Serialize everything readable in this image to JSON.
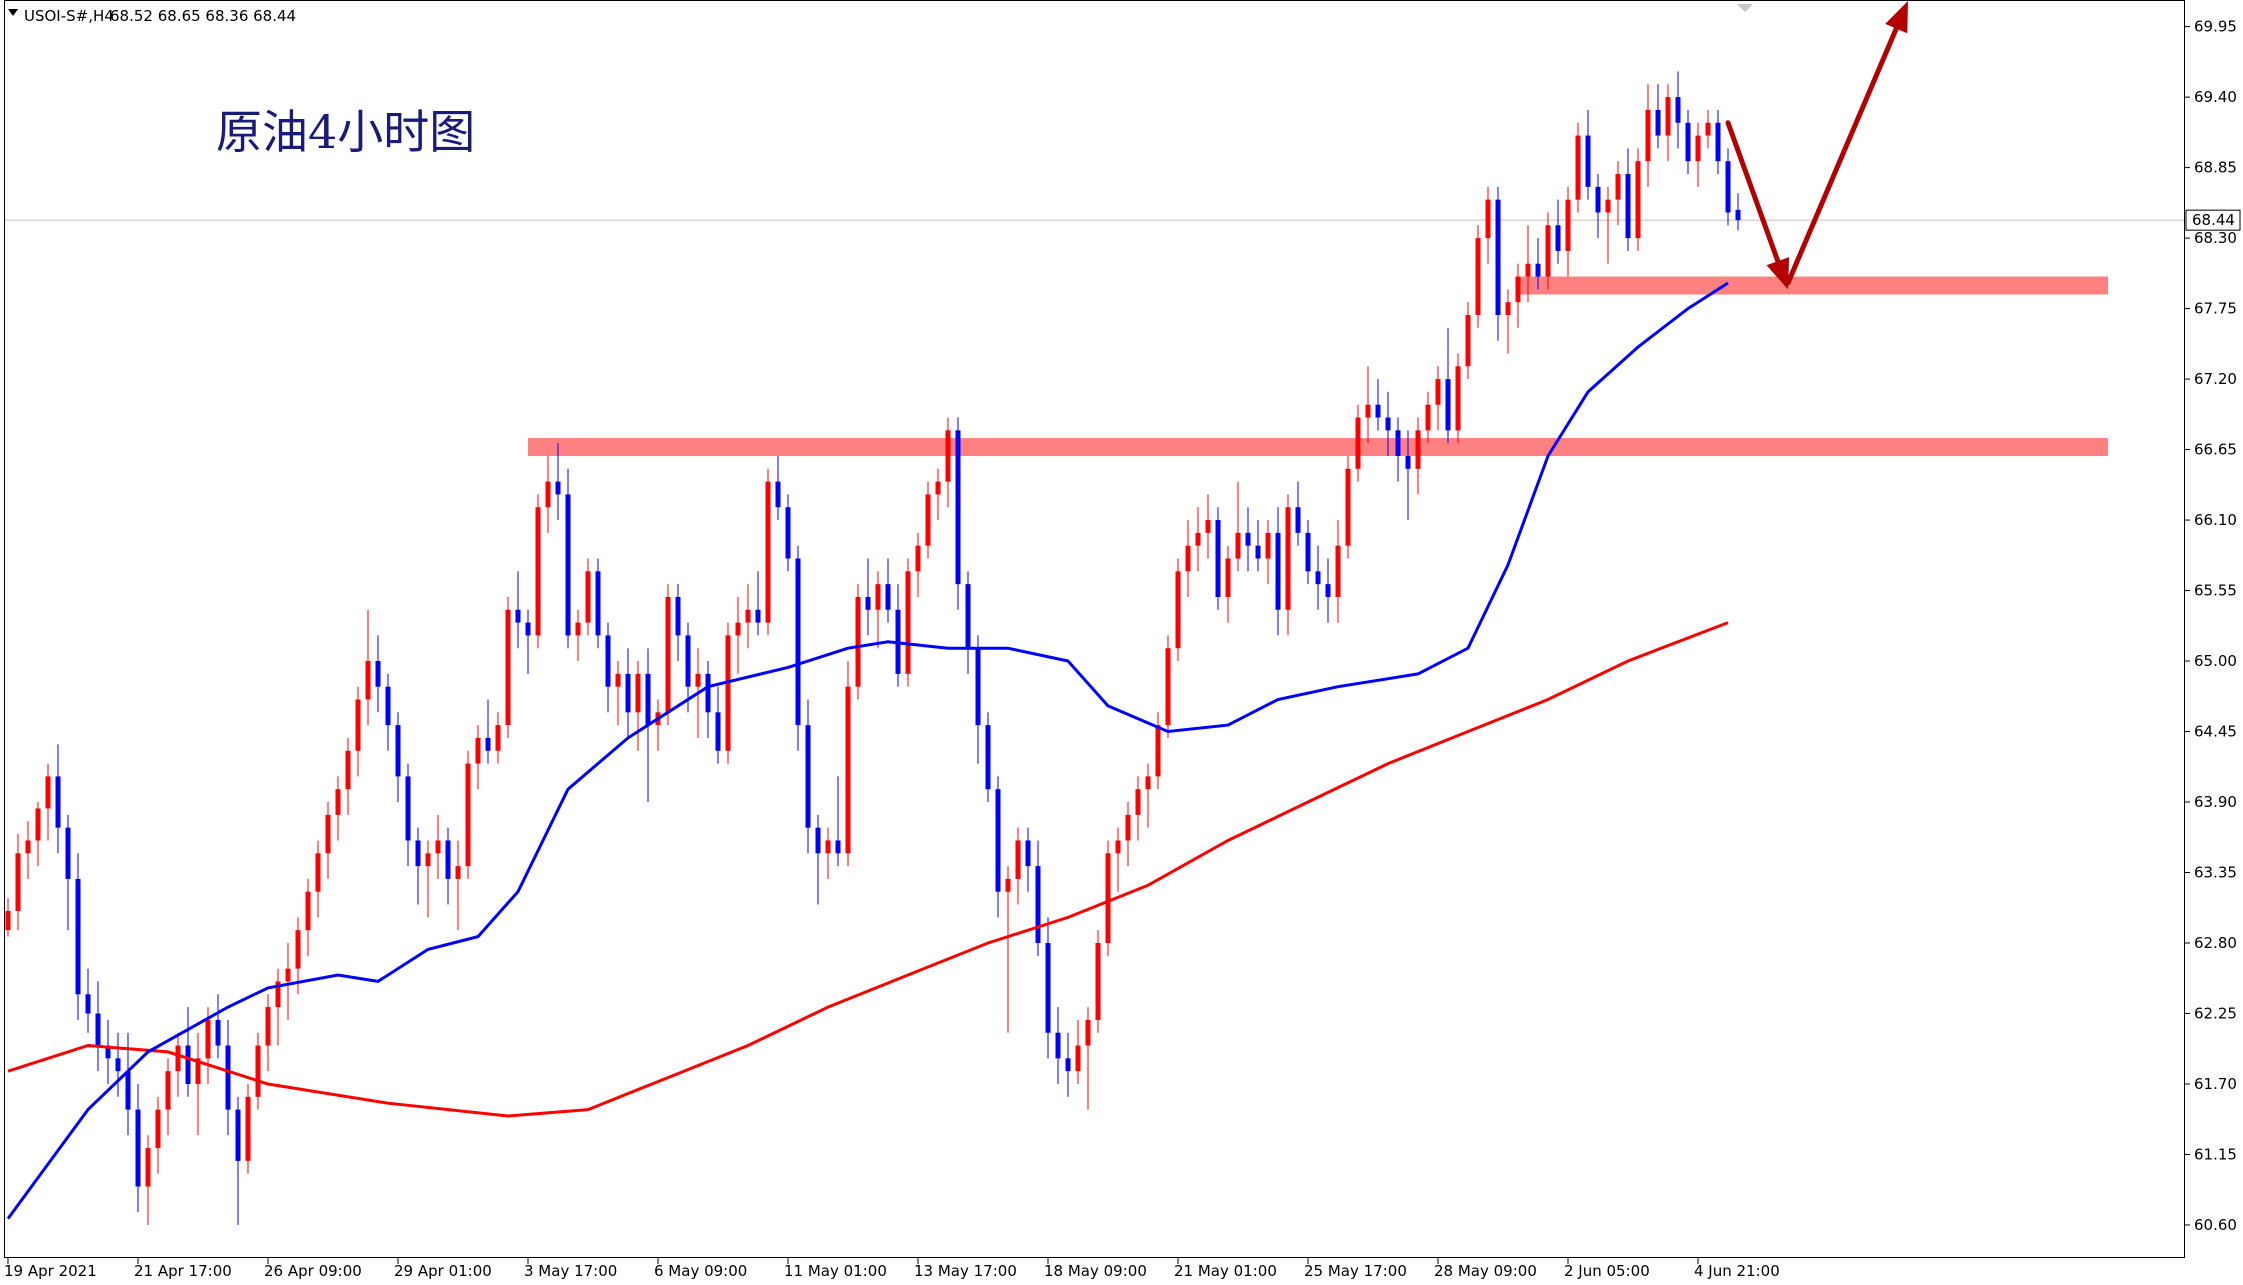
{
  "header": {
    "symbol": "USOI-S#,H4",
    "ohlc": "68.52 68.65 68.36 68.44"
  },
  "annotation": {
    "text": "原油4小时图"
  },
  "price_axis": {
    "labels": [
      "69.95",
      "69.40",
      "68.85",
      "68.30",
      "67.75",
      "67.20",
      "66.65",
      "66.10",
      "65.55",
      "65.00",
      "64.45",
      "63.90",
      "63.35",
      "62.80",
      "62.25",
      "61.70",
      "61.15",
      "60.60"
    ],
    "current_price_label": "68.44"
  },
  "time_axis": {
    "labels": [
      "19 Apr 2021",
      "21 Apr 17:00",
      "26 Apr 09:00",
      "29 Apr 01:00",
      "3 May 17:00",
      "6 May 09:00",
      "11 May 01:00",
      "13 May 17:00",
      "18 May 09:00",
      "21 May 01:00",
      "25 May 17:00",
      "28 May 09:00",
      "2 Jun 05:00",
      "4 Jun 21:00"
    ]
  },
  "colors": {
    "bull": "#ff0000",
    "bear": "#0000ff",
    "ma_fast": "#0000ff",
    "ma_slow": "#ff0000",
    "zone": "#ff8080",
    "arrow": "#b30000",
    "axis": "#000000"
  },
  "chart_data": {
    "type": "candlestick",
    "symbol": "USOI-S#",
    "timeframe": "H4",
    "ylim": [
      60.35,
      70.15
    ],
    "grid": false,
    "candles_ohlc": [
      [
        62.9,
        63.15,
        62.85,
        63.05
      ],
      [
        63.05,
        63.65,
        62.9,
        63.5
      ],
      [
        63.5,
        63.75,
        63.3,
        63.6
      ],
      [
        63.6,
        63.9,
        63.4,
        63.85
      ],
      [
        63.85,
        64.2,
        63.6,
        64.1
      ],
      [
        64.1,
        64.35,
        63.5,
        63.7
      ],
      [
        63.7,
        63.8,
        62.9,
        63.3
      ],
      [
        63.3,
        63.5,
        62.2,
        62.4
      ],
      [
        62.4,
        62.6,
        62.1,
        62.25
      ],
      [
        62.25,
        62.5,
        61.8,
        62.0
      ],
      [
        62.0,
        62.2,
        61.7,
        61.9
      ],
      [
        61.9,
        62.1,
        61.6,
        61.8
      ],
      [
        61.8,
        62.1,
        61.3,
        61.5
      ],
      [
        61.5,
        61.7,
        60.7,
        60.9
      ],
      [
        60.9,
        61.3,
        60.6,
        61.2
      ],
      [
        61.2,
        61.6,
        61.0,
        61.5
      ],
      [
        61.5,
        61.9,
        61.3,
        61.8
      ],
      [
        61.8,
        62.1,
        61.6,
        62.0
      ],
      [
        62.0,
        62.3,
        61.6,
        61.7
      ],
      [
        61.7,
        62.1,
        61.3,
        61.9
      ],
      [
        61.9,
        62.3,
        61.7,
        62.2
      ],
      [
        62.2,
        62.4,
        61.9,
        62.0
      ],
      [
        62.0,
        62.2,
        61.3,
        61.5
      ],
      [
        61.5,
        61.6,
        60.6,
        61.1
      ],
      [
        61.1,
        61.7,
        61.0,
        61.6
      ],
      [
        61.6,
        62.1,
        61.5,
        62.0
      ],
      [
        62.0,
        62.4,
        61.8,
        62.3
      ],
      [
        62.3,
        62.6,
        62.0,
        62.5
      ],
      [
        62.5,
        62.8,
        62.2,
        62.6
      ],
      [
        62.6,
        63.0,
        62.4,
        62.9
      ],
      [
        62.9,
        63.3,
        62.7,
        63.2
      ],
      [
        63.2,
        63.6,
        63.0,
        63.5
      ],
      [
        63.5,
        63.9,
        63.3,
        63.8
      ],
      [
        63.8,
        64.1,
        63.6,
        64.0
      ],
      [
        64.0,
        64.4,
        63.8,
        64.3
      ],
      [
        64.3,
        64.8,
        64.1,
        64.7
      ],
      [
        64.7,
        65.4,
        64.5,
        65.0
      ],
      [
        65.0,
        65.2,
        64.6,
        64.8
      ],
      [
        64.8,
        64.9,
        64.3,
        64.5
      ],
      [
        64.5,
        64.6,
        63.9,
        64.1
      ],
      [
        64.1,
        64.2,
        63.4,
        63.6
      ],
      [
        63.6,
        63.7,
        63.1,
        63.4
      ],
      [
        63.4,
        63.6,
        63.0,
        63.5
      ],
      [
        63.5,
        63.8,
        63.3,
        63.6
      ],
      [
        63.6,
        63.7,
        63.1,
        63.3
      ],
      [
        63.3,
        63.6,
        62.9,
        63.4
      ],
      [
        63.4,
        64.3,
        63.3,
        64.2
      ],
      [
        64.2,
        64.5,
        64.0,
        64.4
      ],
      [
        64.4,
        64.7,
        64.2,
        64.3
      ],
      [
        64.3,
        64.6,
        64.2,
        64.5
      ],
      [
        64.5,
        65.5,
        64.4,
        65.4
      ],
      [
        65.4,
        65.7,
        65.1,
        65.3
      ],
      [
        65.3,
        65.4,
        64.9,
        65.2
      ],
      [
        65.2,
        66.3,
        65.1,
        66.2
      ],
      [
        66.2,
        66.6,
        66.0,
        66.4
      ],
      [
        66.4,
        66.7,
        66.1,
        66.3
      ],
      [
        66.3,
        66.5,
        65.1,
        65.2
      ],
      [
        65.2,
        65.4,
        65.0,
        65.3
      ],
      [
        65.3,
        65.8,
        65.2,
        65.7
      ],
      [
        65.7,
        65.8,
        65.1,
        65.2
      ],
      [
        65.2,
        65.3,
        64.6,
        64.8
      ],
      [
        64.8,
        65.0,
        64.5,
        64.9
      ],
      [
        64.9,
        65.1,
        64.4,
        64.6
      ],
      [
        64.6,
        65.0,
        64.3,
        64.9
      ],
      [
        64.9,
        65.1,
        63.9,
        64.5
      ],
      [
        64.5,
        64.7,
        64.3,
        64.6
      ],
      [
        64.6,
        65.6,
        64.5,
        65.5
      ],
      [
        65.5,
        65.6,
        65.0,
        65.2
      ],
      [
        65.2,
        65.3,
        64.6,
        64.8
      ],
      [
        64.8,
        65.1,
        64.4,
        64.9
      ],
      [
        64.9,
        65.0,
        64.4,
        64.6
      ],
      [
        64.6,
        64.8,
        64.2,
        64.3
      ],
      [
        64.3,
        65.3,
        64.2,
        65.2
      ],
      [
        65.2,
        65.5,
        64.9,
        65.3
      ],
      [
        65.3,
        65.6,
        65.1,
        65.4
      ],
      [
        65.4,
        65.7,
        65.2,
        65.3
      ],
      [
        65.3,
        66.5,
        65.2,
        66.4
      ],
      [
        66.4,
        66.6,
        66.1,
        66.2
      ],
      [
        66.2,
        66.3,
        65.7,
        65.8
      ],
      [
        65.8,
        65.9,
        64.3,
        64.5
      ],
      [
        64.5,
        64.7,
        63.5,
        63.7
      ],
      [
        63.7,
        63.8,
        63.1,
        63.5
      ],
      [
        63.5,
        63.7,
        63.3,
        63.6
      ],
      [
        63.6,
        64.1,
        63.4,
        63.5
      ],
      [
        63.5,
        65.0,
        63.4,
        64.8
      ],
      [
        64.8,
        65.6,
        64.7,
        65.5
      ],
      [
        65.5,
        65.8,
        65.2,
        65.4
      ],
      [
        65.4,
        65.7,
        65.1,
        65.6
      ],
      [
        65.6,
        65.8,
        65.3,
        65.4
      ],
      [
        65.4,
        65.6,
        64.8,
        64.9
      ],
      [
        64.9,
        65.8,
        64.8,
        65.7
      ],
      [
        65.7,
        66.0,
        65.5,
        65.9
      ],
      [
        65.9,
        66.4,
        65.8,
        66.3
      ],
      [
        66.3,
        66.5,
        66.1,
        66.4
      ],
      [
        66.4,
        66.9,
        66.2,
        66.8
      ],
      [
        66.8,
        66.9,
        65.4,
        65.6
      ],
      [
        65.6,
        65.7,
        64.9,
        65.1
      ],
      [
        65.1,
        65.2,
        64.2,
        64.5
      ],
      [
        64.5,
        64.6,
        63.9,
        64.0
      ],
      [
        64.0,
        64.1,
        63.0,
        63.2
      ],
      [
        63.2,
        63.4,
        62.1,
        63.3
      ],
      [
        63.3,
        63.7,
        63.1,
        63.6
      ],
      [
        63.6,
        63.7,
        63.2,
        63.4
      ],
      [
        63.4,
        63.6,
        62.7,
        62.8
      ],
      [
        62.8,
        63.0,
        61.9,
        62.1
      ],
      [
        62.1,
        62.3,
        61.7,
        61.9
      ],
      [
        61.9,
        62.1,
        61.6,
        61.8
      ],
      [
        61.8,
        62.2,
        61.7,
        62.0
      ],
      [
        62.0,
        62.3,
        61.5,
        62.2
      ],
      [
        62.2,
        62.9,
        62.1,
        62.8
      ],
      [
        62.8,
        63.6,
        62.7,
        63.5
      ],
      [
        63.5,
        63.7,
        63.2,
        63.6
      ],
      [
        63.6,
        63.9,
        63.4,
        63.8
      ],
      [
        63.8,
        64.1,
        63.6,
        64.0
      ],
      [
        64.0,
        64.2,
        63.7,
        64.1
      ],
      [
        64.1,
        64.6,
        64.0,
        64.5
      ],
      [
        64.5,
        65.2,
        64.4,
        65.1
      ],
      [
        65.1,
        65.8,
        65.0,
        65.7
      ],
      [
        65.7,
        66.1,
        65.5,
        65.9
      ],
      [
        65.9,
        66.2,
        65.7,
        66.0
      ],
      [
        66.0,
        66.3,
        65.8,
        66.1
      ],
      [
        66.1,
        66.2,
        65.4,
        65.5
      ],
      [
        65.5,
        65.9,
        65.3,
        65.8
      ],
      [
        65.8,
        66.4,
        65.7,
        66.0
      ],
      [
        66.0,
        66.2,
        65.7,
        65.9
      ],
      [
        65.9,
        66.1,
        65.7,
        65.8
      ],
      [
        65.8,
        66.1,
        65.6,
        66.0
      ],
      [
        66.0,
        66.2,
        65.2,
        65.4
      ],
      [
        65.4,
        66.3,
        65.2,
        66.2
      ],
      [
        66.2,
        66.4,
        65.9,
        66.0
      ],
      [
        66.0,
        66.1,
        65.6,
        65.7
      ],
      [
        65.7,
        65.9,
        65.4,
        65.6
      ],
      [
        65.6,
        65.8,
        65.3,
        65.5
      ],
      [
        65.5,
        66.1,
        65.3,
        65.9
      ],
      [
        65.9,
        66.6,
        65.8,
        66.5
      ],
      [
        66.5,
        67.0,
        66.4,
        66.9
      ],
      [
        66.9,
        67.3,
        66.7,
        67.0
      ],
      [
        67.0,
        67.2,
        66.8,
        66.9
      ],
      [
        66.9,
        67.1,
        66.6,
        66.8
      ],
      [
        66.8,
        66.9,
        66.4,
        66.6
      ],
      [
        66.6,
        66.8,
        66.1,
        66.5
      ],
      [
        66.5,
        66.9,
        66.3,
        66.8
      ],
      [
        66.8,
        67.1,
        66.7,
        67.0
      ],
      [
        67.0,
        67.3,
        66.8,
        67.2
      ],
      [
        67.2,
        67.6,
        66.7,
        66.8
      ],
      [
        66.8,
        67.4,
        66.7,
        67.3
      ],
      [
        67.3,
        67.8,
        67.2,
        67.7
      ],
      [
        67.7,
        68.4,
        67.6,
        68.3
      ],
      [
        68.3,
        68.7,
        68.1,
        68.6
      ],
      [
        68.6,
        68.7,
        67.5,
        67.7
      ],
      [
        67.7,
        67.9,
        67.4,
        67.8
      ],
      [
        67.8,
        68.1,
        67.6,
        68.0
      ],
      [
        68.0,
        68.4,
        67.8,
        68.1
      ],
      [
        68.1,
        68.3,
        67.9,
        68.0
      ],
      [
        68.0,
        68.5,
        67.9,
        68.4
      ],
      [
        68.4,
        68.6,
        68.1,
        68.2
      ],
      [
        68.2,
        68.7,
        68.0,
        68.6
      ],
      [
        68.6,
        69.2,
        68.5,
        69.1
      ],
      [
        69.1,
        69.3,
        68.6,
        68.7
      ],
      [
        68.7,
        68.8,
        68.3,
        68.5
      ],
      [
        68.5,
        68.7,
        68.1,
        68.6
      ],
      [
        68.6,
        68.9,
        68.4,
        68.8
      ],
      [
        68.8,
        69.0,
        68.2,
        68.3
      ],
      [
        68.3,
        69.0,
        68.2,
        68.9
      ],
      [
        68.9,
        69.5,
        68.7,
        69.3
      ],
      [
        69.3,
        69.5,
        69.0,
        69.1
      ],
      [
        69.1,
        69.5,
        68.9,
        69.4
      ],
      [
        69.4,
        69.6,
        69.0,
        69.2
      ],
      [
        69.2,
        69.3,
        68.8,
        68.9
      ],
      [
        68.9,
        69.2,
        68.7,
        69.1
      ],
      [
        69.1,
        69.3,
        69.0,
        69.2
      ],
      [
        69.2,
        69.3,
        68.8,
        68.9
      ],
      [
        68.9,
        69.0,
        68.4,
        68.5
      ],
      [
        68.52,
        68.65,
        68.36,
        68.44
      ]
    ],
    "ma_fast": [
      [
        0,
        60.65
      ],
      [
        8,
        61.5
      ],
      [
        14,
        61.95
      ],
      [
        22,
        62.3
      ],
      [
        26,
        62.45
      ],
      [
        33,
        62.55
      ],
      [
        37,
        62.5
      ],
      [
        42,
        62.75
      ],
      [
        47,
        62.85
      ],
      [
        51,
        63.2
      ],
      [
        56,
        64.0
      ],
      [
        62,
        64.4
      ],
      [
        70,
        64.8
      ],
      [
        78,
        64.95
      ],
      [
        84,
        65.1
      ],
      [
        88,
        65.15
      ],
      [
        94,
        65.1
      ],
      [
        100,
        65.1
      ],
      [
        106,
        65.0
      ],
      [
        110,
        64.65
      ],
      [
        116,
        64.45
      ],
      [
        122,
        64.5
      ],
      [
        127,
        64.7
      ],
      [
        133,
        64.8
      ],
      [
        141,
        64.9
      ],
      [
        146,
        65.1
      ],
      [
        150,
        65.75
      ],
      [
        154,
        66.6
      ],
      [
        158,
        67.1
      ],
      [
        163,
        67.45
      ],
      [
        168,
        67.75
      ],
      [
        172,
        67.95
      ]
    ],
    "ma_slow": [
      [
        0,
        61.8
      ],
      [
        8,
        62.0
      ],
      [
        16,
        61.95
      ],
      [
        26,
        61.7
      ],
      [
        38,
        61.55
      ],
      [
        50,
        61.45
      ],
      [
        58,
        61.5
      ],
      [
        66,
        61.75
      ],
      [
        74,
        62.0
      ],
      [
        82,
        62.3
      ],
      [
        90,
        62.55
      ],
      [
        98,
        62.8
      ],
      [
        106,
        63.0
      ],
      [
        114,
        63.25
      ],
      [
        122,
        63.6
      ],
      [
        130,
        63.9
      ],
      [
        138,
        64.2
      ],
      [
        146,
        64.45
      ],
      [
        154,
        64.7
      ],
      [
        162,
        65.0
      ],
      [
        172,
        65.3
      ]
    ],
    "zones": [
      {
        "from_bar": 52,
        "to_bar": 210,
        "y_low": 66.6,
        "y_high": 66.74
      },
      {
        "from_bar": 151,
        "to_bar": 210,
        "y_low": 67.86,
        "y_high": 68.0
      }
    ],
    "arrows": [
      {
        "from": [
          172,
          69.2
        ],
        "to": [
          178,
          67.9
        ]
      },
      {
        "from": [
          178,
          67.95
        ],
        "to": [
          190,
          70.15
        ]
      }
    ],
    "current_price": 68.44
  }
}
